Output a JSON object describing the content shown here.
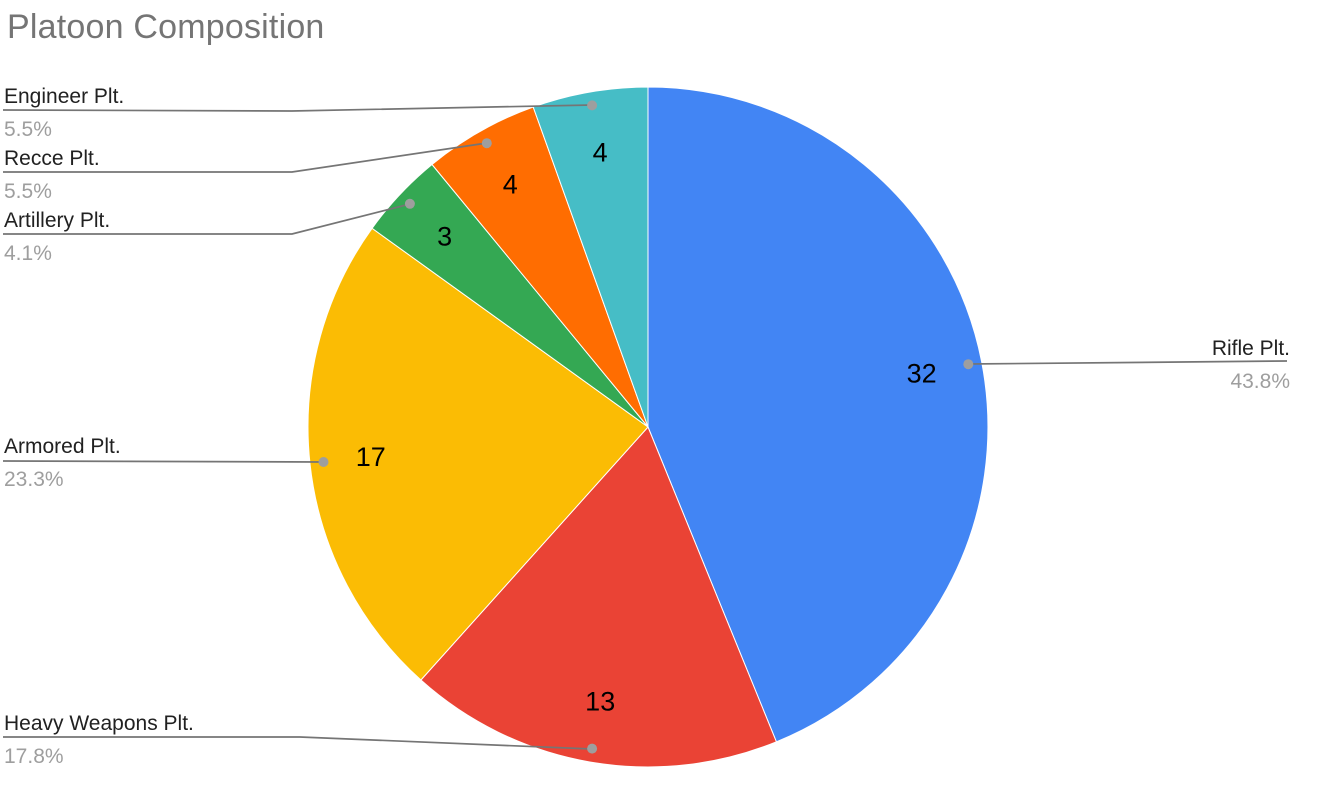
{
  "chart_data": {
    "type": "pie",
    "title": "Platoon Composition",
    "categories": [
      "Rifle Plt.",
      "Heavy Weapons Plt.",
      "Armored Plt.",
      "Artillery Plt.",
      "Recce Plt.",
      "Engineer Plt."
    ],
    "values": [
      32,
      13,
      17,
      3,
      4,
      4
    ],
    "percent_labels": [
      "43.8%",
      "17.8%",
      "23.3%",
      "4.1%",
      "5.5%",
      "5.5%"
    ],
    "slice_colors": [
      "#4285F4",
      "#EA4335",
      "#FBBC04",
      "#34A853",
      "#FF6D01",
      "#46BDC6"
    ],
    "start_angle_deg": 0,
    "direction": "clockwise",
    "slice_value_labels_inside": true,
    "callout_labels_outside": true,
    "legend_position": "labeled-callouts",
    "title_color": "#757575",
    "label_color": "#212121",
    "percent_label_color": "#9E9E9E",
    "leader_line_color": "#757575",
    "leader_dot_color": "#9E9E9E",
    "background_color": "#FFFFFF"
  }
}
